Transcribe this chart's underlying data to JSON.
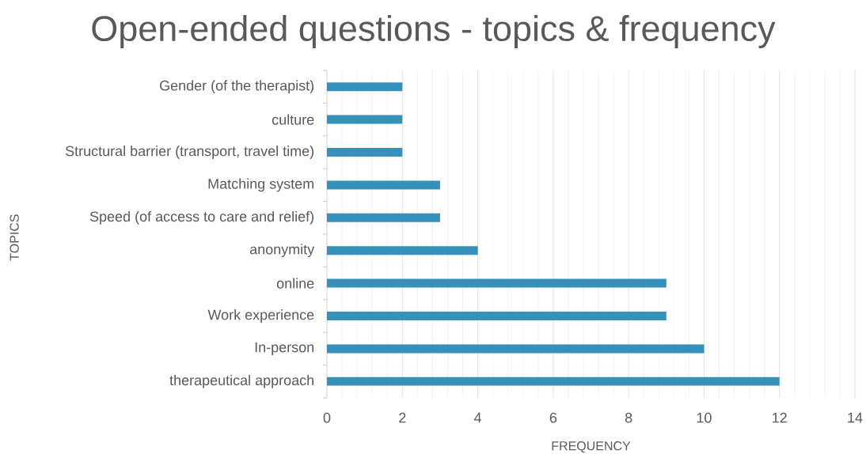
{
  "chart_data": {
    "type": "bar",
    "orientation": "horizontal",
    "title": "Open-ended questions - topics & frequency",
    "xlabel": "FREQUENCY",
    "ylabel": "TOPICS",
    "categories": [
      "Gender (of the therapist)",
      "culture",
      "Structural barrier (transport, travel time)",
      "Matching system",
      "Speed (of access to care and relief)",
      "anonymity",
      "online",
      "Work experience",
      "In-person",
      "therapeutical approach"
    ],
    "values": [
      2,
      2,
      2,
      3,
      3,
      4,
      9,
      9,
      10,
      12
    ],
    "color": "#3591ba",
    "xlim": [
      0,
      14
    ],
    "xticks": [
      0,
      2,
      4,
      6,
      8,
      10,
      12,
      14
    ],
    "grid": "x"
  }
}
